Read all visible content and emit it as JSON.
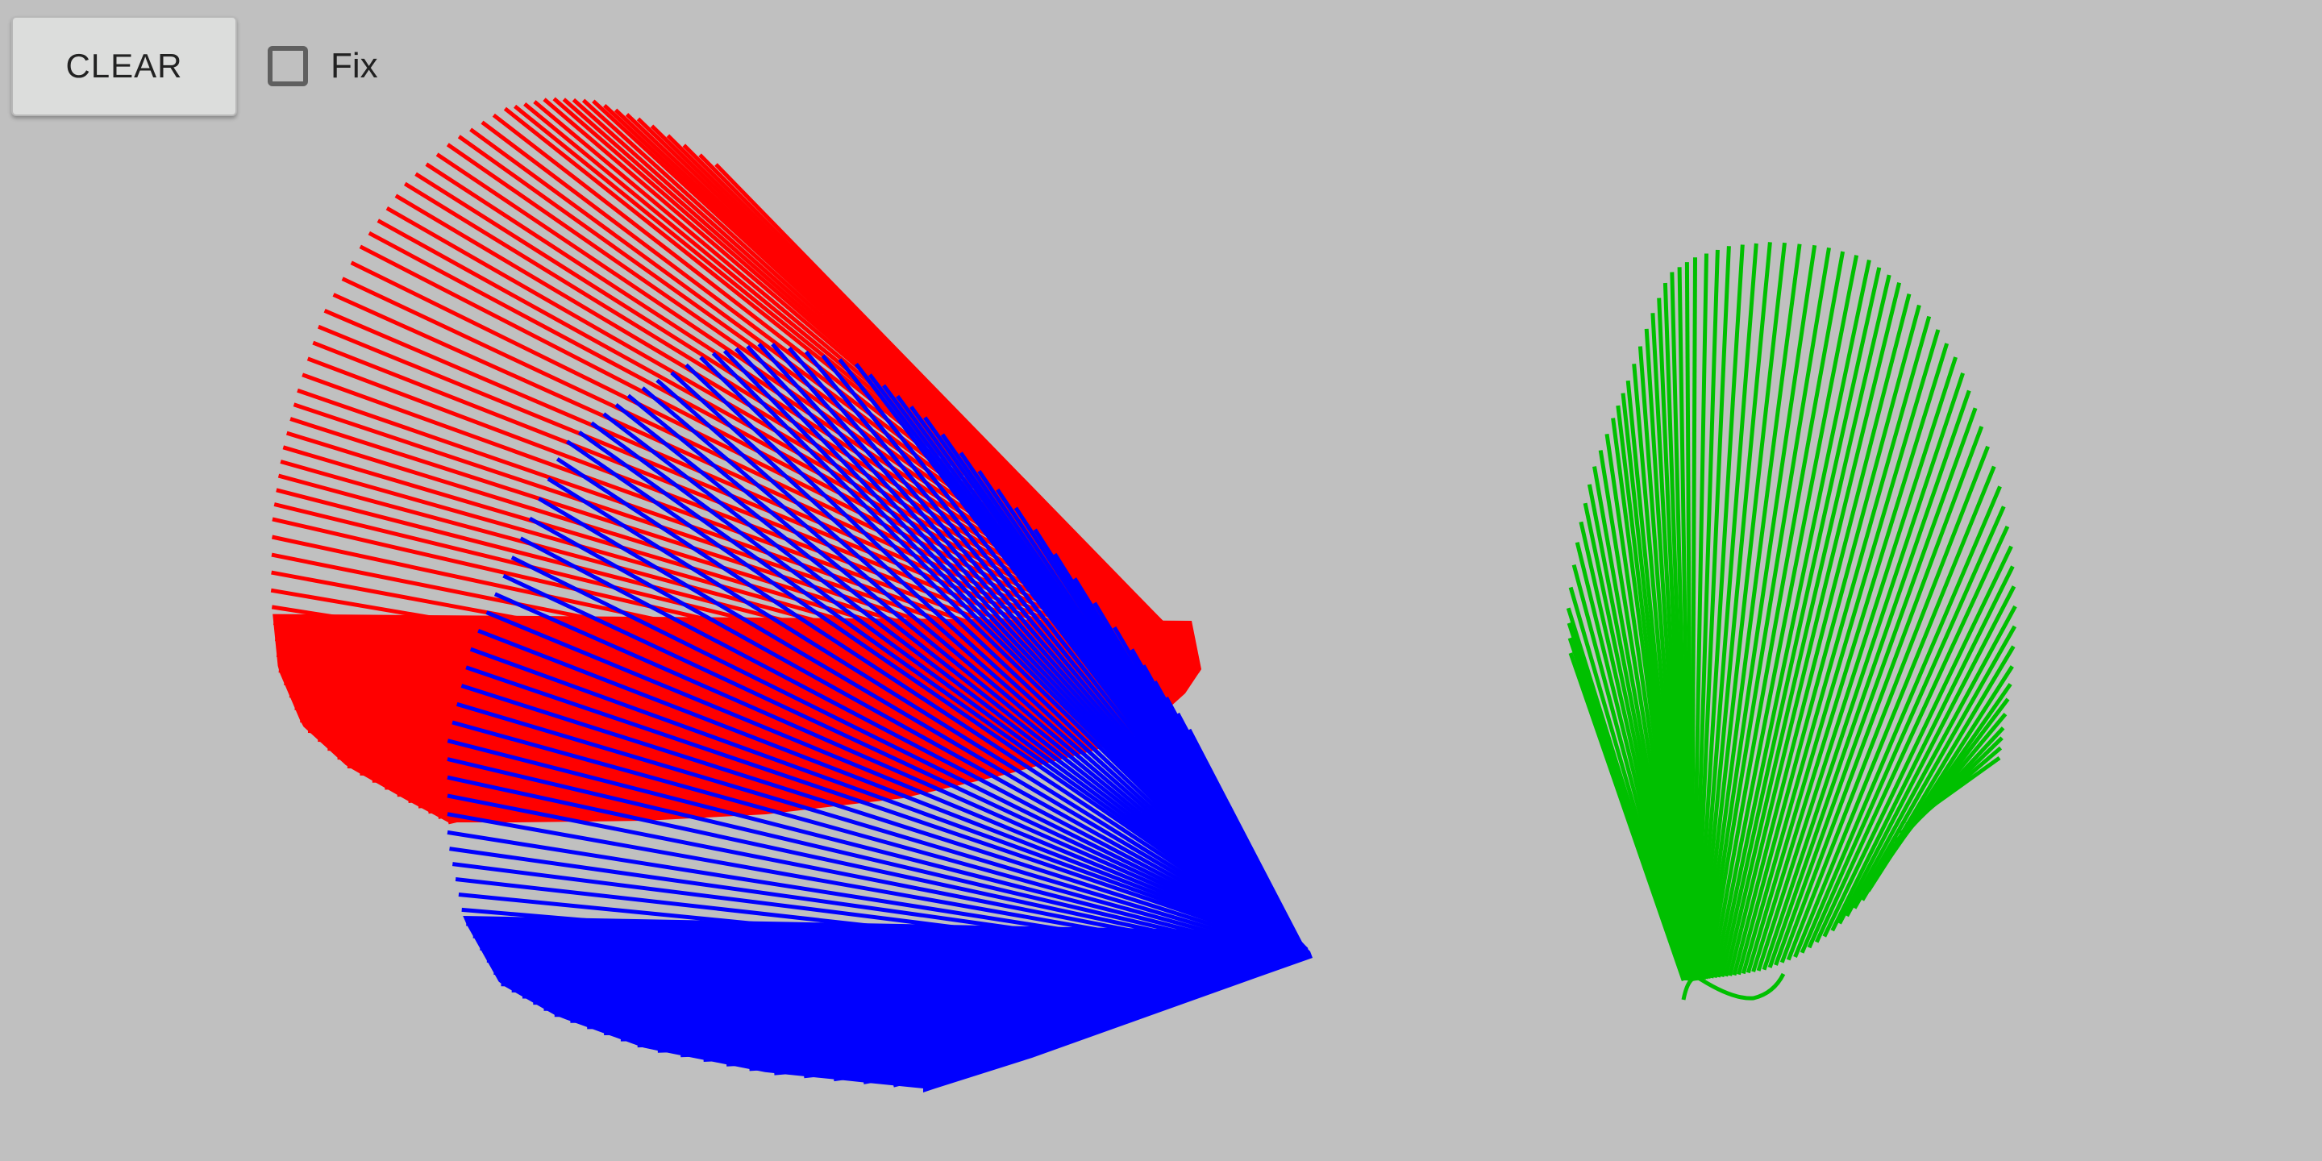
{
  "toolbar": {
    "clear_label": "CLEAR",
    "fix_label": "Fix",
    "fix_checked": false
  },
  "canvas": {
    "background": "#c0c0c0",
    "fans": [
      {
        "name": "red-fan",
        "color": "#ff0000",
        "line_count": 78
      },
      {
        "name": "blue-fan",
        "color": "#0000ff",
        "line_count": 96
      },
      {
        "name": "green-fan",
        "color": "#00c000",
        "line_count": 72
      }
    ]
  }
}
